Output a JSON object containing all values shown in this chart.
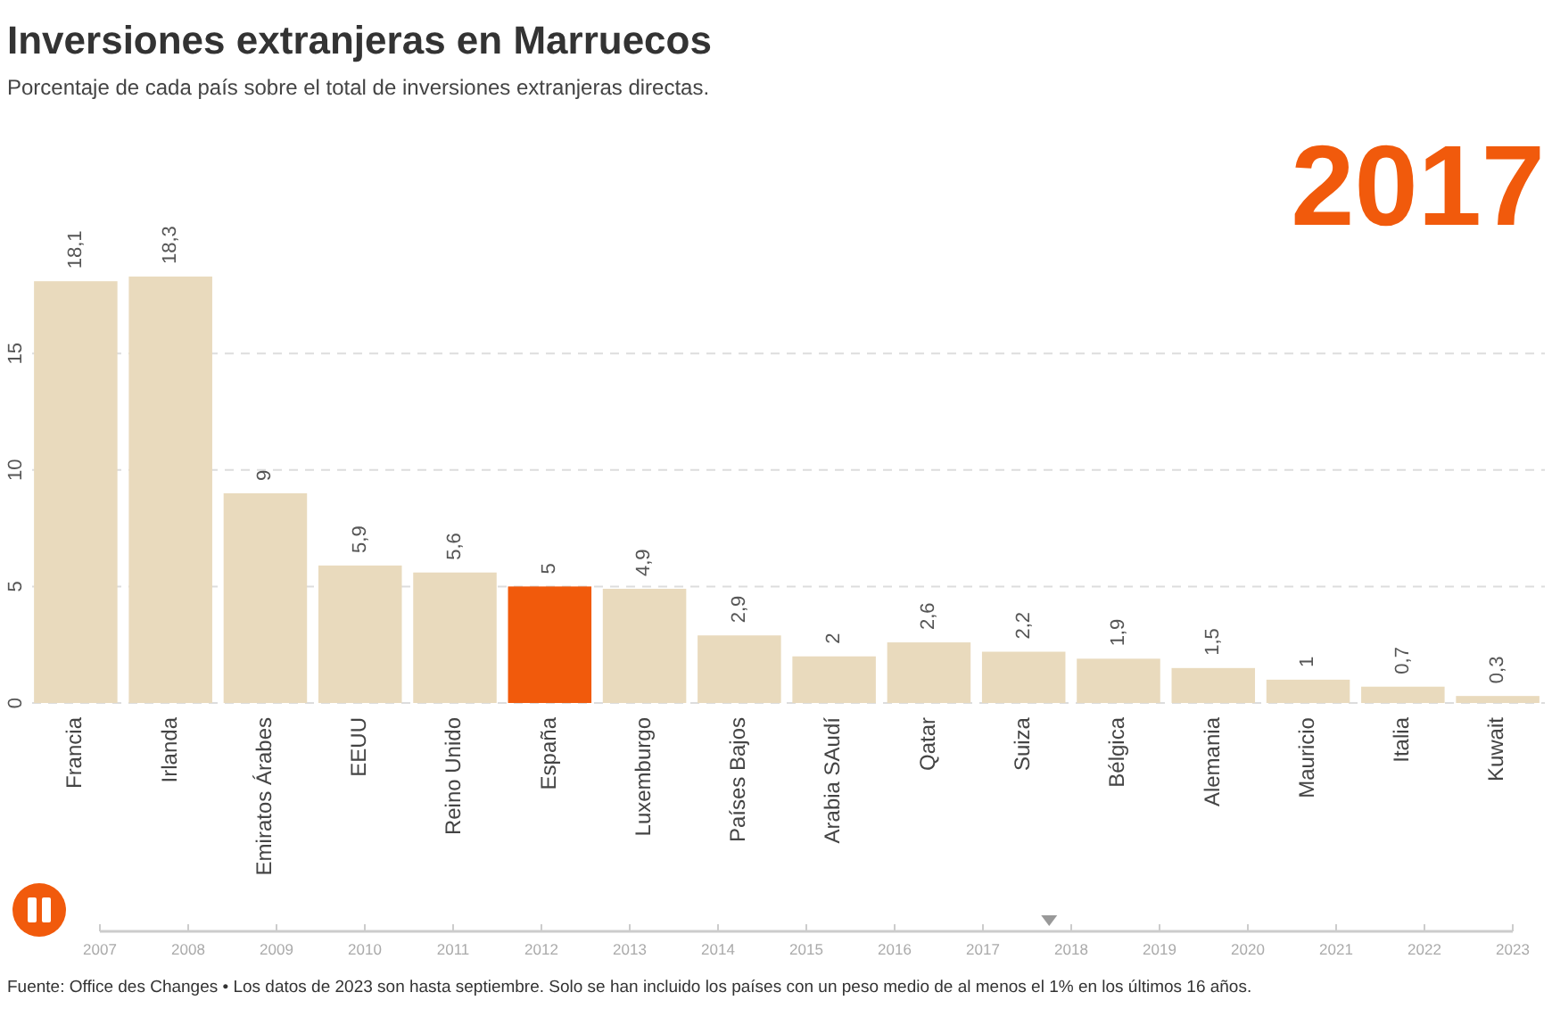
{
  "chart_data": {
    "type": "bar",
    "title": "Inversiones extranjeras en Marruecos",
    "subtitle": "Porcentaje de cada país sobre el total de inversiones extranjeras directas.",
    "categories": [
      "Francia",
      "Irlanda",
      "Emiratos Árabes",
      "EEUU",
      "Reino Unido",
      "España",
      "Luxemburgo",
      "Países Bajos",
      "Arabia SAudí",
      "Qatar",
      "Suiza",
      "Bélgica",
      "Alemania",
      "Mauricio",
      "Italia",
      "Kuwait"
    ],
    "values": [
      18.1,
      18.3,
      9,
      5.9,
      5.6,
      5,
      4.9,
      2.9,
      2,
      2.6,
      2.2,
      1.9,
      1.5,
      1,
      0.7,
      0.3
    ],
    "value_labels": [
      "18,1",
      "18,3",
      "9",
      "5,9",
      "5,6",
      "5",
      "4,9",
      "2,9",
      "2",
      "2,6",
      "2,2",
      "1,9",
      "1,5",
      "1",
      "0,7",
      "0,3"
    ],
    "colors": [
      "#e9dabd",
      "#e9dabd",
      "#e9dabd",
      "#e9dabd",
      "#e9dabd",
      "#f15a0c",
      "#e9dabd",
      "#e9dabd",
      "#e9dabd",
      "#e9dabd",
      "#e9dabd",
      "#e9dabd",
      "#e9dabd",
      "#e9dabd",
      "#e9dabd",
      "#e9dabd"
    ],
    "ylim": [
      0,
      18.3
    ],
    "yticks": [
      0,
      5,
      10,
      15
    ],
    "grid": "y",
    "annotations": [
      "2017",
      "2007",
      "2008",
      "2009",
      "2010",
      "2011",
      "2012",
      "2013",
      "2014",
      "2015",
      "2016",
      "2017",
      "2018",
      "2019",
      "2020",
      "2021",
      "2022",
      "2023",
      "Fuente: Office des Changes • Los datos de 2023 son hasta septiembre. Solo se han incluido los países con un peso medio de al menos el 1% en los últimos 16 años."
    ]
  }
}
